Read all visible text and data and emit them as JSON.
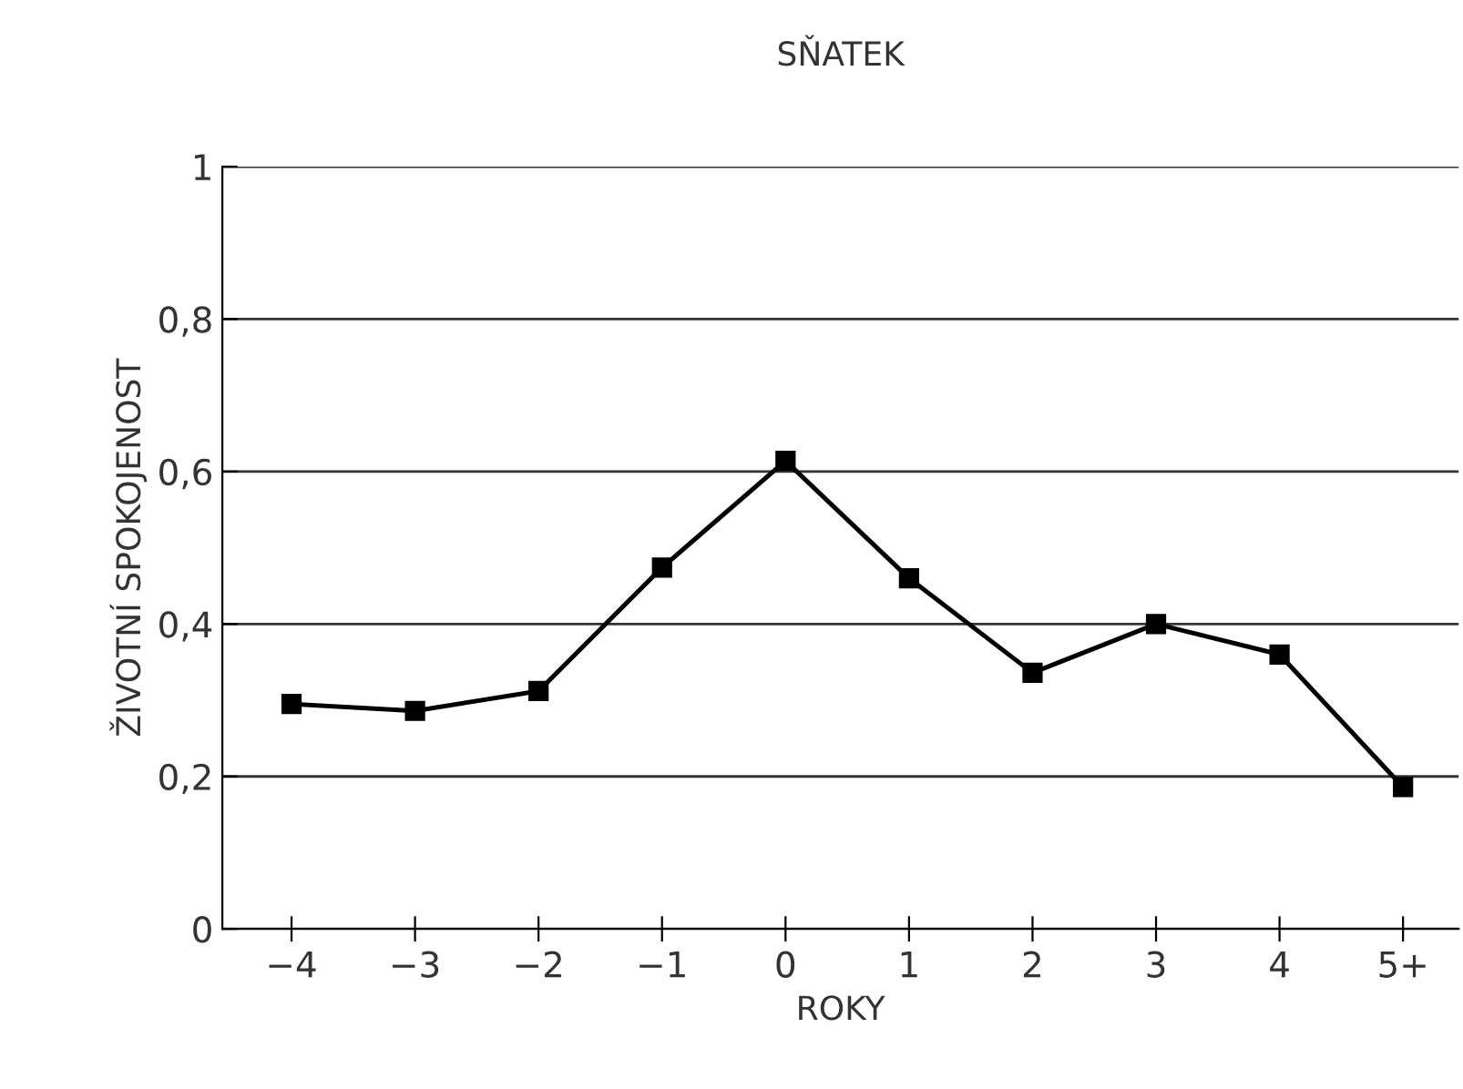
{
  "chart_data": {
    "type": "line",
    "title": "SŇATEK",
    "xlabel": "ROKY",
    "ylabel": "ŽIVOTNÍ SPOKOJENOST",
    "categories": [
      "−4",
      "−3",
      "−2",
      "−1",
      "0",
      "1",
      "2",
      "3",
      "4",
      "5+"
    ],
    "series": [
      {
        "color": "#000000",
        "values": [
          0.295,
          0.286,
          0.312,
          0.474,
          0.614,
          0.46,
          0.336,
          0.4,
          0.36,
          0.186
        ]
      }
    ],
    "ylim": [
      0,
      1
    ],
    "yticks": [
      0,
      {
        "value": 0.2,
        "label": "0,2"
      },
      {
        "value": 0.4,
        "label": "0,4"
      },
      {
        "value": 0.6,
        "label": "0,6"
      },
      {
        "value": 0.8,
        "label": "0,8"
      },
      1
    ],
    "grid": "y",
    "marker": "square",
    "line_style": "solid"
  }
}
